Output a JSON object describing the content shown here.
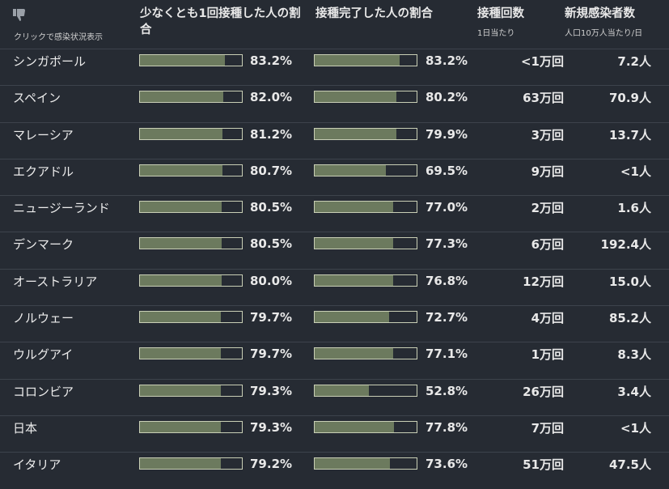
{
  "header": {
    "click_label": "クリックで感染状況表示",
    "col1": "少なくとも1回接種した人の割合",
    "col2": "接種完了した人の割合",
    "col3": "接種回数",
    "col3_sub": "1日当たり",
    "col4": "新規感染者数",
    "col4_sub": "人口10万人当たり/日"
  },
  "chart_data": {
    "type": "table",
    "columns": [
      "少なくとも1回接種した人の割合",
      "接種完了した人の割合",
      "接種回数",
      "新規感染者数"
    ],
    "rows": [
      {
        "country": "シンガポール",
        "one_dose": 83.2,
        "full": 83.2,
        "doses": "<1万回",
        "cases": "7.2人"
      },
      {
        "country": "スペイン",
        "one_dose": 82.0,
        "full": 80.2,
        "doses": "63万回",
        "cases": "70.9人"
      },
      {
        "country": "マレーシア",
        "one_dose": 81.2,
        "full": 79.9,
        "doses": "3万回",
        "cases": "13.7人"
      },
      {
        "country": "エクアドル",
        "one_dose": 80.7,
        "full": 69.5,
        "doses": "9万回",
        "cases": "<1人"
      },
      {
        "country": "ニュージーランド",
        "one_dose": 80.5,
        "full": 77.0,
        "doses": "2万回",
        "cases": "1.6人"
      },
      {
        "country": "デンマーク",
        "one_dose": 80.5,
        "full": 77.3,
        "doses": "6万回",
        "cases": "192.4人"
      },
      {
        "country": "オーストラリア",
        "one_dose": 80.0,
        "full": 76.8,
        "doses": "12万回",
        "cases": "15.0人"
      },
      {
        "country": "ノルウェー",
        "one_dose": 79.7,
        "full": 72.7,
        "doses": "4万回",
        "cases": "85.2人"
      },
      {
        "country": "ウルグアイ",
        "one_dose": 79.7,
        "full": 77.1,
        "doses": "1万回",
        "cases": "8.3人"
      },
      {
        "country": "コロンビア",
        "one_dose": 79.3,
        "full": 52.8,
        "doses": "26万回",
        "cases": "3.4人"
      },
      {
        "country": "日本",
        "one_dose": 79.3,
        "full": 77.8,
        "doses": "7万回",
        "cases": "<1人"
      },
      {
        "country": "イタリア",
        "one_dose": 79.2,
        "full": 73.6,
        "doses": "51万回",
        "cases": "47.5人"
      }
    ],
    "bar_max": 100
  },
  "colors": {
    "background": "#262b33",
    "bar_fill": "#6c7a5e",
    "bar_border": "#c9cfb6"
  }
}
